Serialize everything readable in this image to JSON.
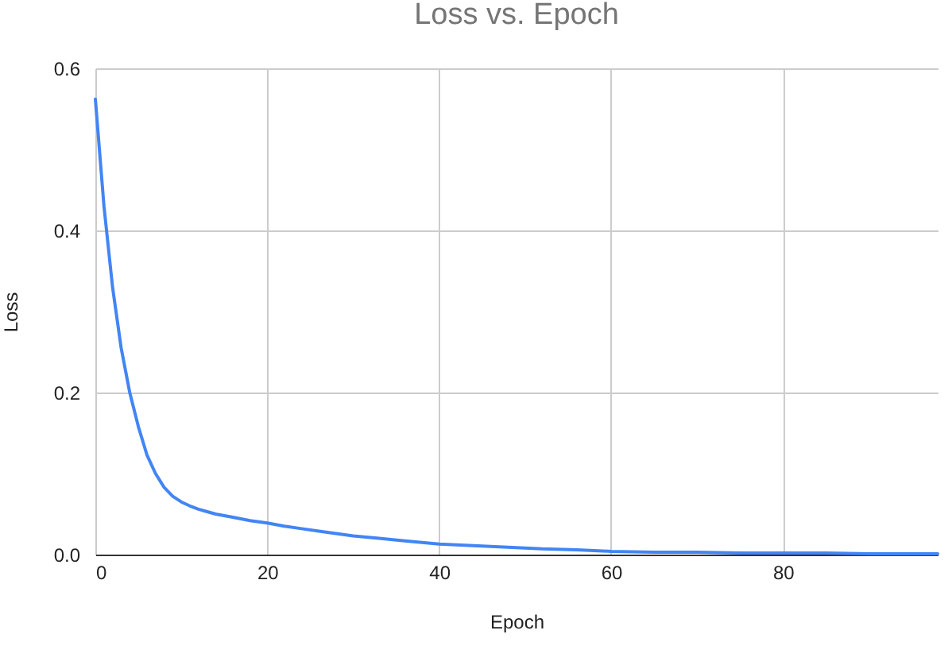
{
  "chart_data": {
    "type": "line",
    "title": "Loss vs. Epoch",
    "xlabel": "Epoch",
    "ylabel": "Loss",
    "x": [
      0,
      1,
      2,
      3,
      4,
      5,
      6,
      7,
      8,
      9,
      10,
      11,
      12,
      14,
      16,
      18,
      20,
      22,
      24,
      26,
      28,
      30,
      33,
      36,
      40,
      44,
      48,
      52,
      56,
      60,
      65,
      70,
      75,
      80,
      85,
      90,
      95,
      98
    ],
    "series": [
      {
        "color": "#4285f4",
        "values": [
          0.562,
          0.43,
          0.33,
          0.255,
          0.2,
          0.158,
          0.123,
          0.1,
          0.083,
          0.072,
          0.065,
          0.06,
          0.056,
          0.05,
          0.046,
          0.042,
          0.039,
          0.035,
          0.032,
          0.029,
          0.026,
          0.023,
          0.02,
          0.017,
          0.013,
          0.011,
          0.009,
          0.007,
          0.006,
          0.004,
          0.003,
          0.003,
          0.002,
          0.002,
          0.002,
          0.001,
          0.001,
          0.001
        ]
      }
    ],
    "xlim": [
      0,
      98
    ],
    "ylim": [
      0,
      0.6
    ],
    "xticks": [
      0,
      20,
      40,
      60,
      80
    ],
    "yticks": [
      {
        "value": 0,
        "label": "0.0"
      },
      0.2,
      0.4,
      0.6
    ],
    "grid": true,
    "legend": false,
    "marker": "none",
    "line_style": "solid"
  }
}
